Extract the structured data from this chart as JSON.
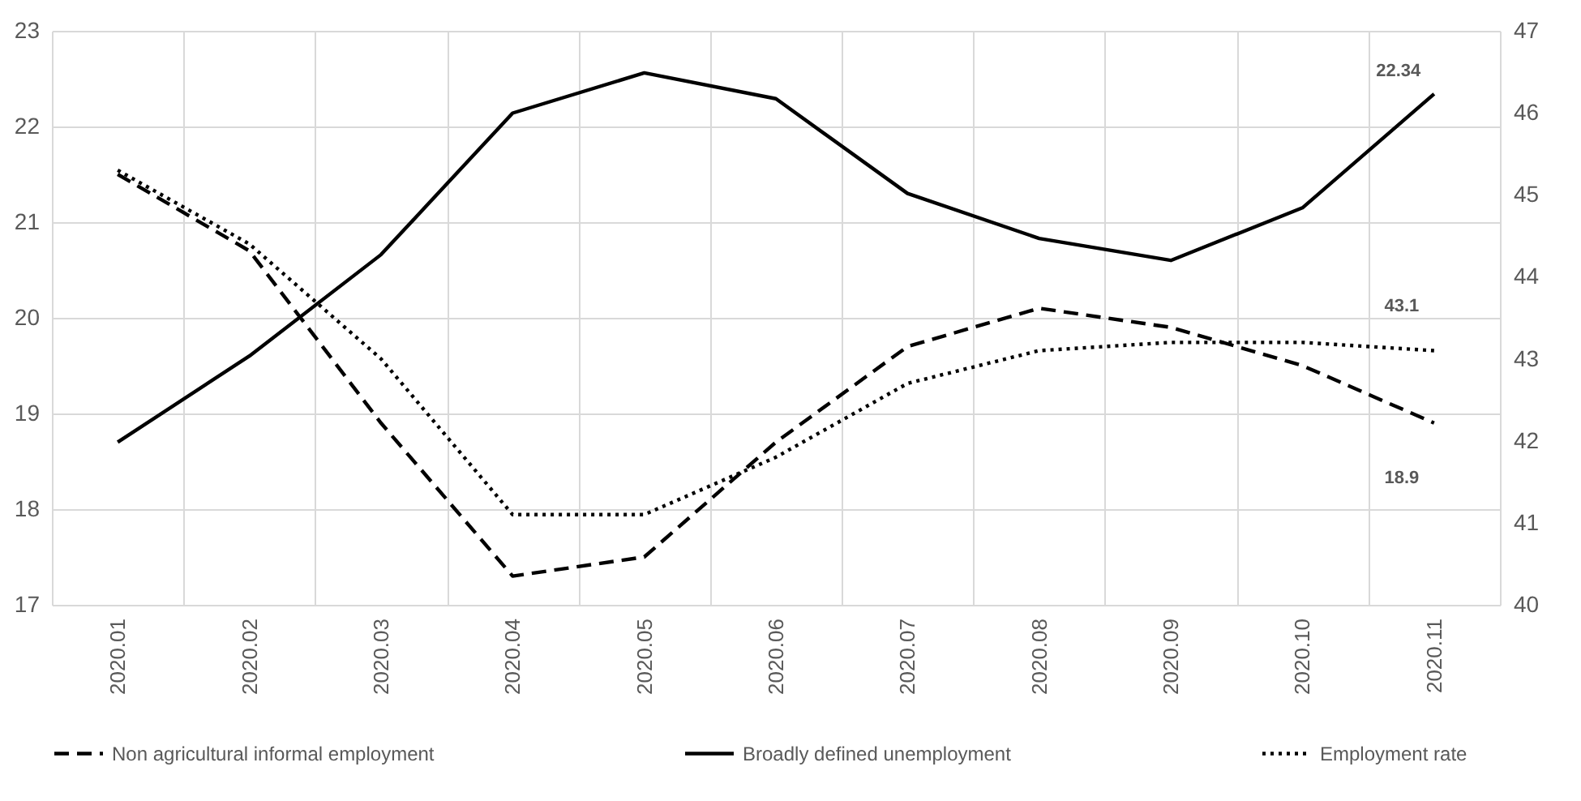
{
  "chart_data": {
    "type": "line",
    "categories": [
      "2020.01",
      "2020.02",
      "2020.03",
      "2020.04",
      "2020.05",
      "2020.06",
      "2020.07",
      "2020.08",
      "2020.09",
      "2020.10",
      "2020.11"
    ],
    "series": [
      {
        "name": "Non agricultural informal employment",
        "color": "#000000",
        "line_style": "dashed",
        "values": [
          21.5,
          20.7,
          18.9,
          17.3,
          17.5,
          18.7,
          19.7,
          20.1,
          19.9,
          19.5,
          18.9
        ],
        "value_labels": [
          null,
          null,
          null,
          null,
          null,
          null,
          null,
          null,
          null,
          null,
          "18.9"
        ]
      },
      {
        "name": "Broadly defined unemployment",
        "color": "#000000",
        "line_style": "solid",
        "values": [
          18.7,
          19.6,
          20.66,
          22.14,
          22.56,
          22.29,
          21.3,
          20.83,
          20.6,
          21.15,
          22.34
        ],
        "value_labels": [
          null,
          null,
          null,
          null,
          null,
          null,
          null,
          null,
          null,
          null,
          "22.34"
        ]
      },
      {
        "name": "Employment rate",
        "color": "#000000",
        "line_style": "dotted",
        "axis": "y2",
        "values": [
          45.3,
          44.4,
          43.0,
          41.1,
          41.1,
          41.8,
          42.7,
          43.1,
          43.2,
          43.2,
          43.1
        ],
        "value_labels": [
          null,
          null,
          null,
          null,
          null,
          null,
          null,
          null,
          null,
          null,
          "43.1"
        ]
      }
    ],
    "ylim": [
      17,
      23
    ],
    "yticks": [
      17,
      18,
      19,
      20,
      21,
      22,
      23
    ],
    "y2lim": [
      40,
      47
    ],
    "y2ticks": [
      40,
      41,
      42,
      43,
      44,
      45,
      46,
      47
    ],
    "grid": true,
    "legend": "bottom"
  }
}
